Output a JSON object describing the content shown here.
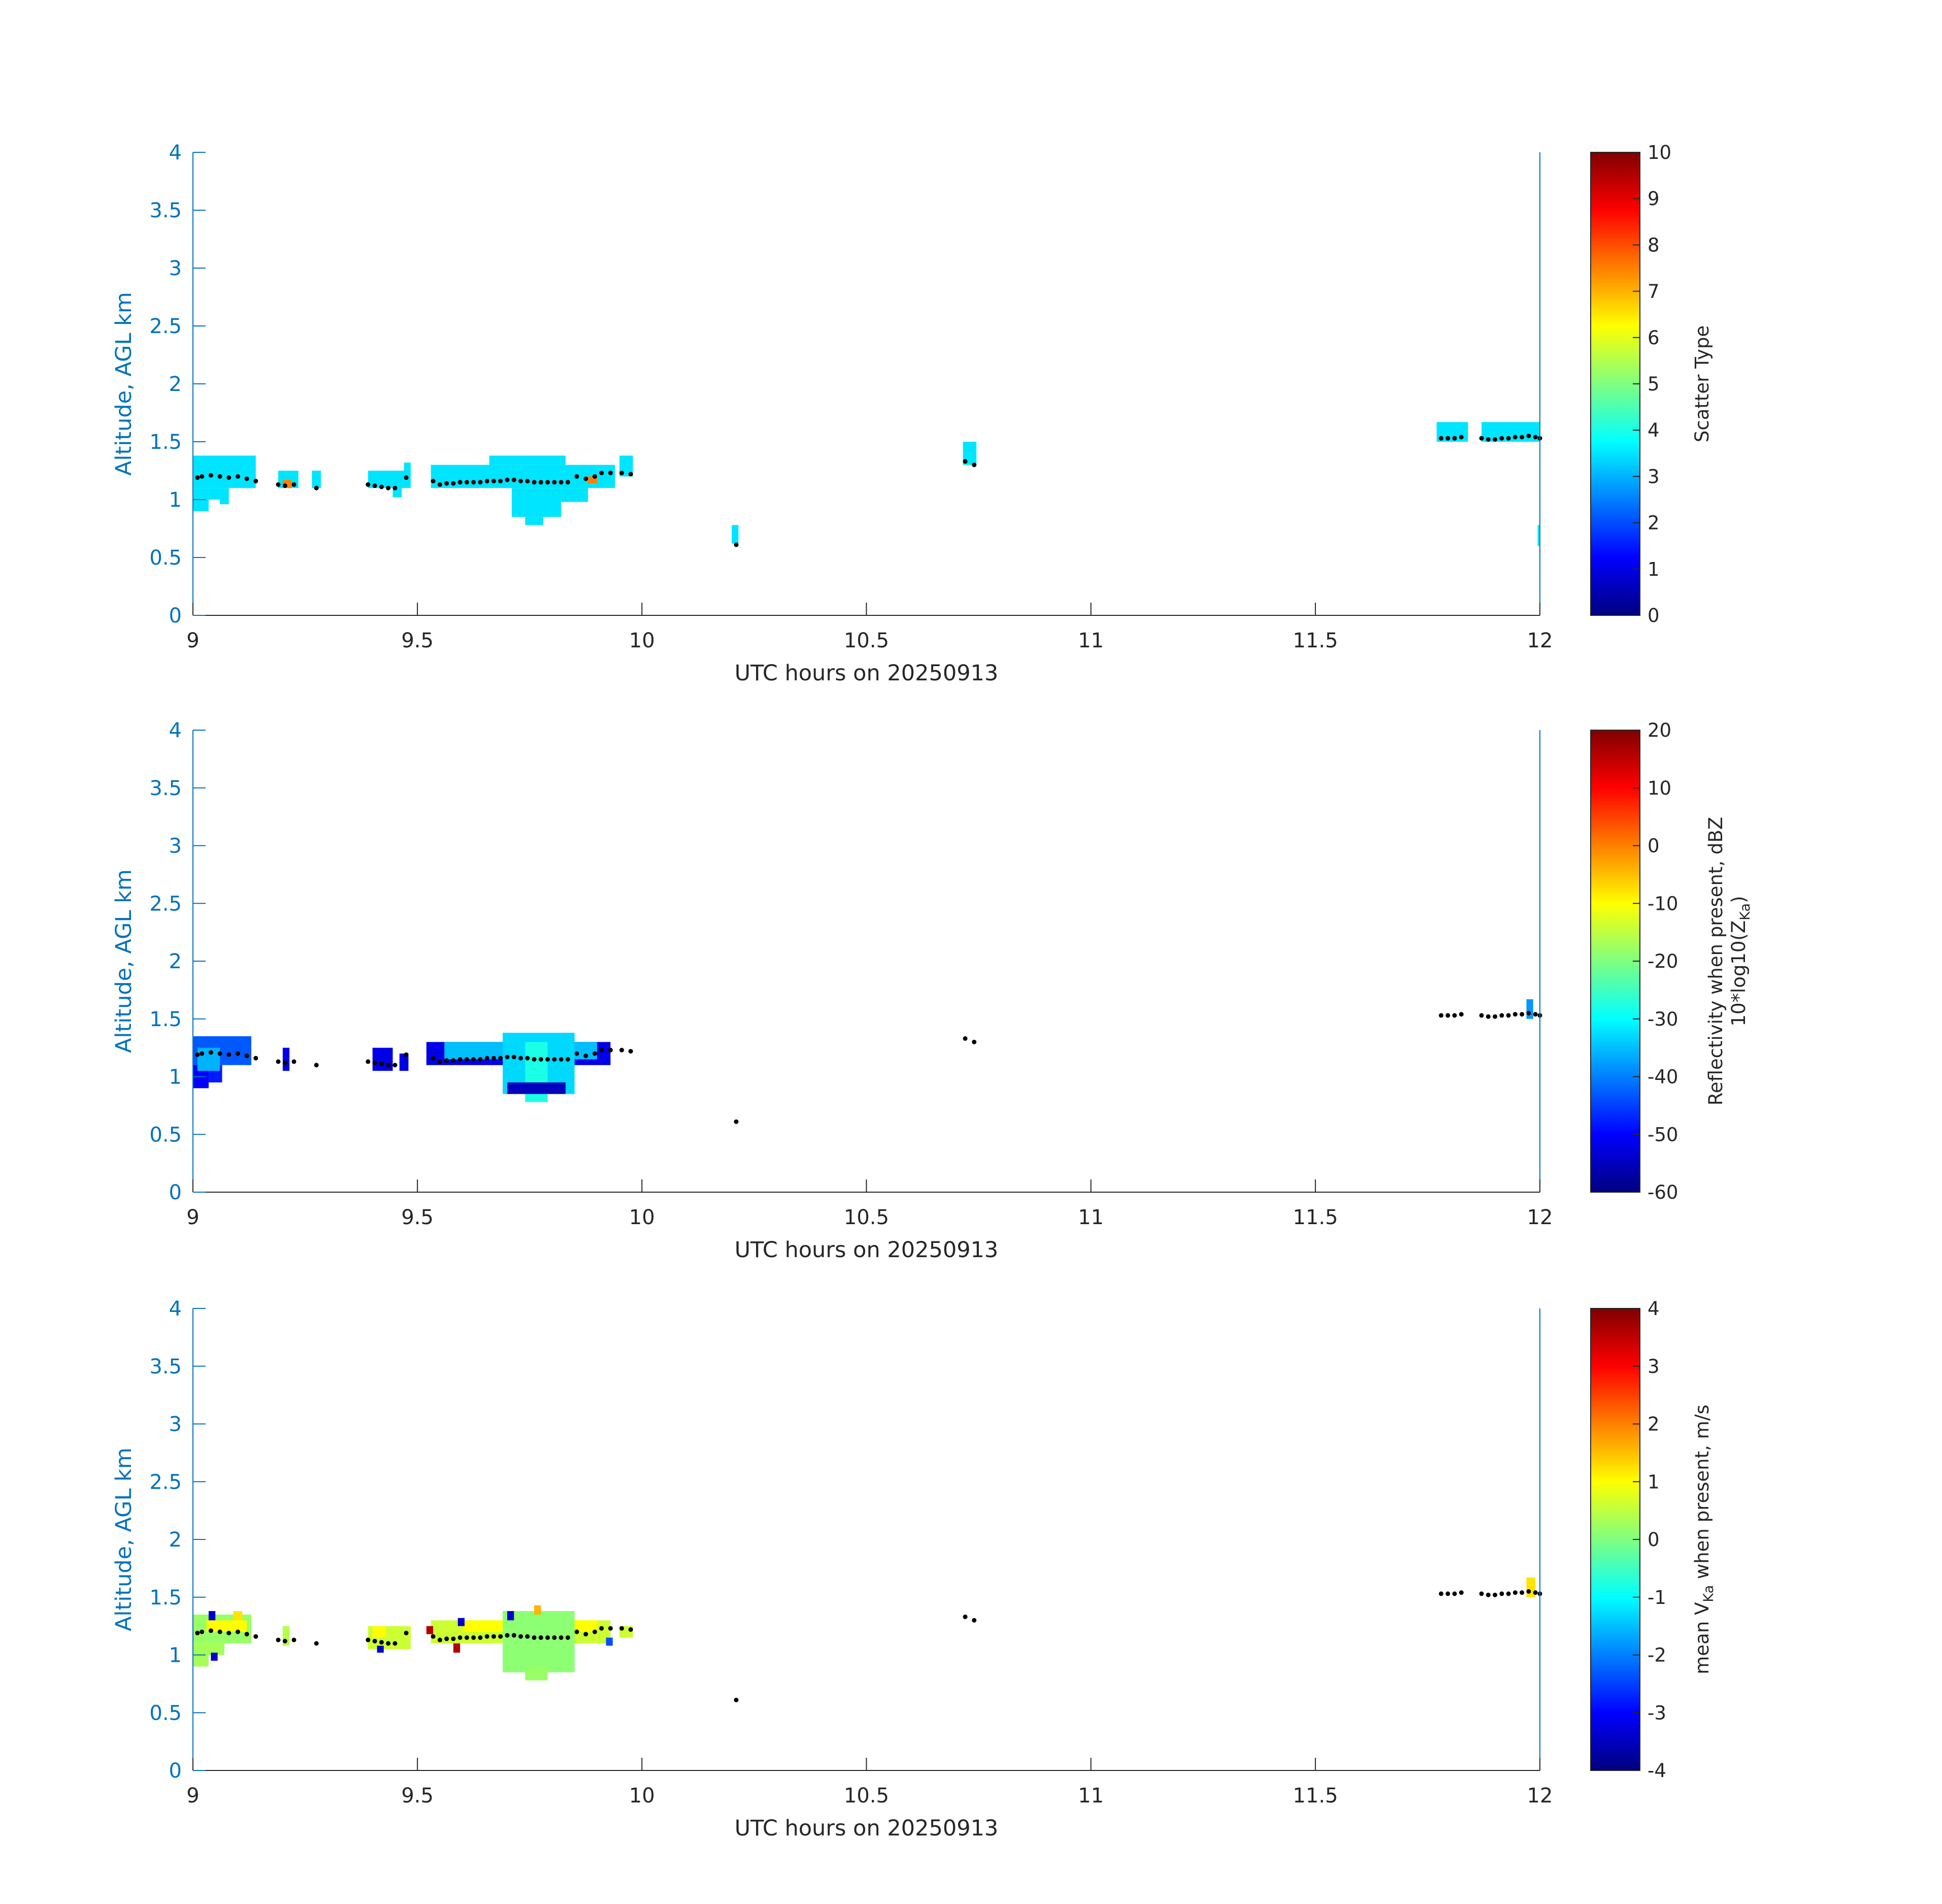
{
  "chart_data": [
    {
      "type": "heatmap",
      "xlabel": "UTC hours on 20250913",
      "ylabel": "Altitude, AGL km",
      "xlim": [
        9,
        12
      ],
      "ylim": [
        0,
        4
      ],
      "xticks": [
        9,
        9.5,
        10,
        10.5,
        11,
        11.5,
        12
      ],
      "xtick_labels": [
        "9",
        "9.5",
        "10",
        "10.5",
        "11",
        "11.5",
        "12"
      ],
      "yticks": [
        0,
        0.5,
        1,
        1.5,
        2,
        2.5,
        3,
        3.5,
        4
      ],
      "ytick_labels": [
        "0",
        "0.5",
        "1",
        "1.5",
        "2",
        "2.5",
        "3",
        "3.5",
        "4"
      ],
      "colorbar": {
        "label_lines": [
          "Scatter Type"
        ],
        "range": [
          0,
          10
        ],
        "ticks": [
          0,
          1,
          2,
          3,
          4,
          5,
          6,
          7,
          8,
          9,
          10
        ],
        "tick_labels": [
          "0",
          "1",
          "2",
          "3",
          "4",
          "5",
          "6",
          "7",
          "8",
          "9",
          "10"
        ],
        "colormap": "jet"
      },
      "cells": [
        {
          "x0": 9.0,
          "x1": 9.14,
          "y0": 1.1,
          "y1": 1.38,
          "value": 3.5
        },
        {
          "x0": 9.0,
          "x1": 9.035,
          "y0": 0.9,
          "y1": 1.1,
          "value": 3.5
        },
        {
          "x0": 9.035,
          "x1": 9.06,
          "y0": 1.0,
          "y1": 1.1,
          "value": 3.5
        },
        {
          "x0": 9.06,
          "x1": 9.08,
          "y0": 0.96,
          "y1": 1.1,
          "value": 3.5
        },
        {
          "x0": 9.19,
          "x1": 9.235,
          "y0": 1.1,
          "y1": 1.25,
          "value": 3.5
        },
        {
          "x0": 9.265,
          "x1": 9.285,
          "y0": 1.1,
          "y1": 1.25,
          "value": 3.5
        },
        {
          "x0": 9.39,
          "x1": 9.485,
          "y0": 1.1,
          "y1": 1.25,
          "value": 3.5
        },
        {
          "x0": 9.445,
          "x1": 9.465,
          "y0": 1.02,
          "y1": 1.1,
          "value": 3.5
        },
        {
          "x0": 9.47,
          "x1": 9.485,
          "y0": 1.25,
          "y1": 1.32,
          "value": 3.5
        },
        {
          "x0": 9.53,
          "x1": 9.94,
          "y0": 1.1,
          "y1": 1.3,
          "value": 3.5
        },
        {
          "x0": 9.66,
          "x1": 9.83,
          "y0": 1.3,
          "y1": 1.38,
          "value": 3.5
        },
        {
          "x0": 9.71,
          "x1": 9.82,
          "y0": 0.85,
          "y1": 1.1,
          "value": 3.5
        },
        {
          "x0": 9.74,
          "x1": 9.78,
          "y0": 0.78,
          "y1": 0.85,
          "value": 3.5
        },
        {
          "x0": 9.82,
          "x1": 9.88,
          "y0": 0.98,
          "y1": 1.1,
          "value": 3.5
        },
        {
          "x0": 9.95,
          "x1": 9.98,
          "y0": 1.2,
          "y1": 1.38,
          "value": 3.5
        },
        {
          "x0": 10.2,
          "x1": 10.215,
          "y0": 0.62,
          "y1": 0.78,
          "value": 3.5
        },
        {
          "x0": 10.715,
          "x1": 10.745,
          "y0": 1.3,
          "y1": 1.5,
          "value": 3.5
        },
        {
          "x0": 11.77,
          "x1": 11.84,
          "y0": 1.5,
          "y1": 1.67,
          "value": 3.5
        },
        {
          "x0": 11.87,
          "x1": 12.0,
          "y0": 1.5,
          "y1": 1.67,
          "value": 3.5
        },
        {
          "x0": 11.995,
          "x1": 12.0,
          "y0": 0.6,
          "y1": 0.78,
          "value": 3.5
        },
        {
          "x0": 9.2,
          "x1": 9.22,
          "y0": 1.1,
          "y1": 1.17,
          "value": 7.5
        },
        {
          "x0": 9.88,
          "x1": 9.9,
          "y0": 1.14,
          "y1": 1.2,
          "value": 7.5
        }
      ]
    },
    {
      "type": "heatmap",
      "xlabel": "UTC hours on 20250913",
      "ylabel": "Altitude, AGL km",
      "xlim": [
        9,
        12
      ],
      "ylim": [
        0,
        4
      ],
      "xticks": [
        9,
        9.5,
        10,
        10.5,
        11,
        11.5,
        12
      ],
      "xtick_labels": [
        "9",
        "9.5",
        "10",
        "10.5",
        "11",
        "11.5",
        "12"
      ],
      "yticks": [
        0,
        0.5,
        1,
        1.5,
        2,
        2.5,
        3,
        3.5,
        4
      ],
      "ytick_labels": [
        "0",
        "0.5",
        "1",
        "1.5",
        "2",
        "2.5",
        "3",
        "3.5",
        "4"
      ],
      "colorbar": {
        "label_lines": [
          "Reflectivity when present, dBZ",
          "10*log10(Z",
          "Ka",
          ")"
        ],
        "range": [
          -60,
          20
        ],
        "ticks": [
          -60,
          -50,
          -40,
          -30,
          -20,
          -10,
          0,
          10,
          20
        ],
        "tick_labels": [
          "-60",
          "-50",
          "-40",
          "-30",
          "-20",
          "-10",
          "0",
          "10",
          "20"
        ],
        "colormap": "jet"
      },
      "cells": [
        {
          "x0": 9.0,
          "x1": 9.13,
          "y0": 1.1,
          "y1": 1.35,
          "value": -43
        },
        {
          "x0": 9.0,
          "x1": 9.035,
          "y0": 0.9,
          "y1": 1.1,
          "value": -50
        },
        {
          "x0": 9.035,
          "x1": 9.065,
          "y0": 0.95,
          "y1": 1.1,
          "value": -48
        },
        {
          "x0": 9.01,
          "x1": 9.06,
          "y0": 1.05,
          "y1": 1.25,
          "value": -36
        },
        {
          "x0": 9.2,
          "x1": 9.215,
          "y0": 1.05,
          "y1": 1.25,
          "value": -52
        },
        {
          "x0": 9.4,
          "x1": 9.445,
          "y0": 1.05,
          "y1": 1.25,
          "value": -52
        },
        {
          "x0": 9.46,
          "x1": 9.48,
          "y0": 1.05,
          "y1": 1.2,
          "value": -52
        },
        {
          "x0": 9.52,
          "x1": 9.93,
          "y0": 1.1,
          "y1": 1.3,
          "value": -52
        },
        {
          "x0": 9.56,
          "x1": 9.9,
          "y0": 1.15,
          "y1": 1.3,
          "value": -35
        },
        {
          "x0": 9.69,
          "x1": 9.85,
          "y0": 0.85,
          "y1": 1.38,
          "value": -33
        },
        {
          "x0": 9.74,
          "x1": 9.79,
          "y0": 0.78,
          "y1": 1.3,
          "value": -28
        },
        {
          "x0": 9.7,
          "x1": 9.83,
          "y0": 0.85,
          "y1": 0.95,
          "value": -55
        },
        {
          "x0": 11.97,
          "x1": 11.985,
          "y0": 1.5,
          "y1": 1.67,
          "value": -38
        }
      ]
    },
    {
      "type": "heatmap",
      "xlabel": "UTC hours on 20250913",
      "ylabel": "Altitude, AGL km",
      "xlim": [
        9,
        12
      ],
      "ylim": [
        0,
        4
      ],
      "xticks": [
        9,
        9.5,
        10,
        10.5,
        11,
        11.5,
        12
      ],
      "xtick_labels": [
        "9",
        "9.5",
        "10",
        "10.5",
        "11",
        "11.5",
        "12"
      ],
      "yticks": [
        0,
        0.5,
        1,
        1.5,
        2,
        2.5,
        3,
        3.5,
        4
      ],
      "ytick_labels": [
        "0",
        "0.5",
        "1",
        "1.5",
        "2",
        "2.5",
        "3",
        "3.5",
        "4"
      ],
      "colorbar": {
        "label_lines": [
          "mean V",
          "Ka",
          " when present, m/s"
        ],
        "range": [
          -4,
          4
        ],
        "ticks": [
          -4,
          -3,
          -2,
          -1,
          0,
          1,
          2,
          3,
          4
        ],
        "tick_labels": [
          "-4",
          "-3",
          "-2",
          "-1",
          "0",
          "1",
          "2",
          "3",
          "4"
        ],
        "colormap": "jet"
      },
      "cells": [
        {
          "x0": 9.0,
          "x1": 9.13,
          "y0": 1.1,
          "y1": 1.35,
          "value": 0.2
        },
        {
          "x0": 9.0,
          "x1": 9.035,
          "y0": 0.9,
          "y1": 1.1,
          "value": 0.3
        },
        {
          "x0": 9.035,
          "x1": 9.07,
          "y0": 1.0,
          "y1": 1.1,
          "value": 0.3
        },
        {
          "x0": 9.03,
          "x1": 9.12,
          "y0": 1.2,
          "y1": 1.3,
          "value": 1.0
        },
        {
          "x0": 9.09,
          "x1": 9.11,
          "y0": 1.3,
          "y1": 1.38,
          "value": 1.2
        },
        {
          "x0": 9.035,
          "x1": 9.05,
          "y0": 1.3,
          "y1": 1.38,
          "value": -3.4
        },
        {
          "x0": 9.04,
          "x1": 9.055,
          "y0": 0.95,
          "y1": 1.02,
          "value": -3.4
        },
        {
          "x0": 9.2,
          "x1": 9.215,
          "y0": 1.08,
          "y1": 1.25,
          "value": 0.4
        },
        {
          "x0": 9.39,
          "x1": 9.485,
          "y0": 1.05,
          "y1": 1.25,
          "value": 0.6
        },
        {
          "x0": 9.4,
          "x1": 9.43,
          "y0": 1.15,
          "y1": 1.25,
          "value": 1.0
        },
        {
          "x0": 9.41,
          "x1": 9.425,
          "y0": 1.02,
          "y1": 1.08,
          "value": -3.4
        },
        {
          "x0": 9.53,
          "x1": 9.93,
          "y0": 1.1,
          "y1": 1.3,
          "value": 0.6
        },
        {
          "x0": 9.6,
          "x1": 9.9,
          "y0": 1.2,
          "y1": 1.3,
          "value": 1.0
        },
        {
          "x0": 9.69,
          "x1": 9.85,
          "y0": 0.85,
          "y1": 1.38,
          "value": 0.1
        },
        {
          "x0": 9.74,
          "x1": 9.79,
          "y0": 0.78,
          "y1": 0.9,
          "value": 0.2
        },
        {
          "x0": 9.52,
          "x1": 9.535,
          "y0": 1.18,
          "y1": 1.25,
          "value": 3.6
        },
        {
          "x0": 9.58,
          "x1": 9.595,
          "y0": 1.02,
          "y1": 1.1,
          "value": 3.6
        },
        {
          "x0": 9.59,
          "x1": 9.605,
          "y0": 1.25,
          "y1": 1.32,
          "value": -3.4
        },
        {
          "x0": 9.7,
          "x1": 9.715,
          "y0": 1.3,
          "y1": 1.38,
          "value": -3.4
        },
        {
          "x0": 9.76,
          "x1": 9.775,
          "y0": 1.35,
          "y1": 1.43,
          "value": 1.6
        },
        {
          "x0": 9.92,
          "x1": 9.935,
          "y0": 1.08,
          "y1": 1.15,
          "value": -2.4
        },
        {
          "x0": 9.95,
          "x1": 9.98,
          "y0": 1.15,
          "y1": 1.25,
          "value": 0.6
        },
        {
          "x0": 11.97,
          "x1": 11.99,
          "y0": 1.5,
          "y1": 1.67,
          "value": 1.2
        }
      ]
    }
  ],
  "cloud_base_points": {
    "x": [
      9.01,
      9.02,
      9.04,
      9.06,
      9.08,
      9.1,
      9.12,
      9.14,
      9.19,
      9.205,
      9.225,
      9.275,
      9.39,
      9.405,
      9.42,
      9.435,
      9.45,
      9.475,
      9.535,
      9.55,
      9.565,
      9.58,
      9.595,
      9.61,
      9.625,
      9.64,
      9.655,
      9.67,
      9.685,
      9.7,
      9.715,
      9.73,
      9.745,
      9.76,
      9.775,
      9.79,
      9.805,
      9.82,
      9.835,
      9.855,
      9.875,
      9.895,
      9.91,
      9.93,
      9.955,
      9.975,
      10.21,
      10.72,
      10.74,
      11.78,
      11.795,
      11.81,
      11.825,
      11.87,
      11.885,
      11.9,
      11.915,
      11.93,
      11.945,
      11.96,
      11.975,
      11.99,
      12.0
    ],
    "y": [
      1.19,
      1.2,
      1.21,
      1.2,
      1.19,
      1.2,
      1.18,
      1.16,
      1.13,
      1.12,
      1.13,
      1.1,
      1.13,
      1.12,
      1.11,
      1.1,
      1.1,
      1.19,
      1.16,
      1.13,
      1.14,
      1.14,
      1.15,
      1.15,
      1.15,
      1.15,
      1.16,
      1.16,
      1.16,
      1.17,
      1.17,
      1.16,
      1.16,
      1.15,
      1.15,
      1.15,
      1.15,
      1.15,
      1.15,
      1.2,
      1.18,
      1.2,
      1.23,
      1.23,
      1.23,
      1.22,
      0.61,
      1.33,
      1.3,
      1.53,
      1.53,
      1.53,
      1.54,
      1.53,
      1.52,
      1.52,
      1.53,
      1.53,
      1.54,
      1.54,
      1.55,
      1.54,
      1.53
    ]
  }
}
